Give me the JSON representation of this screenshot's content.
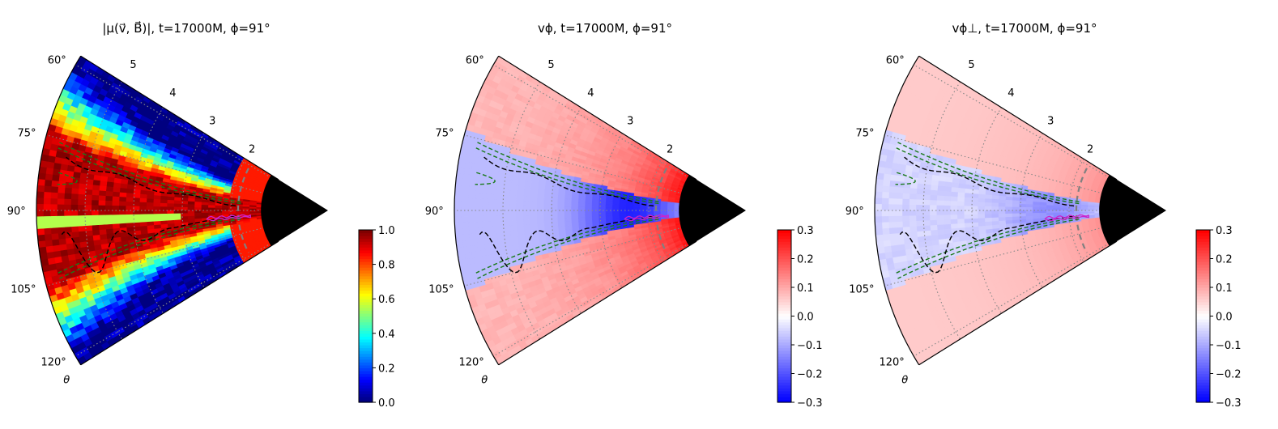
{
  "chart_data": [
    {
      "type": "heatmap",
      "title": "|μ(v⃗, B⃗)|, t=17000M, ϕ=91°",
      "theta_label": "θ",
      "theta_ticks": [
        "60°",
        "75°",
        "90°",
        "105°",
        "120°"
      ],
      "theta_tick_values": [
        60,
        75,
        90,
        105,
        120
      ],
      "r_ticks": [
        "2",
        "3",
        "4",
        "5"
      ],
      "r_tick_values": [
        2,
        3,
        4,
        5
      ],
      "theta_range": [
        58,
        122
      ],
      "r_range": [
        1.2,
        6
      ],
      "grid": true,
      "colormap": "jet",
      "colorbar": {
        "ticks": [
          "0.0",
          "0.2",
          "0.4",
          "0.6",
          "0.8",
          "1.0"
        ],
        "tick_values": [
          0,
          0.2,
          0.4,
          0.6,
          0.8,
          1.0
        ],
        "range": [
          0,
          1
        ]
      }
    },
    {
      "type": "heatmap",
      "title": "vϕ, t=17000M, ϕ=91°",
      "theta_label": "θ",
      "theta_ticks": [
        "60°",
        "75°",
        "90°",
        "105°",
        "120°"
      ],
      "theta_tick_values": [
        60,
        75,
        90,
        105,
        120
      ],
      "r_ticks": [
        "2",
        "3",
        "4",
        "5"
      ],
      "r_tick_values": [
        2,
        3,
        4,
        5
      ],
      "theta_range": [
        58,
        122
      ],
      "r_range": [
        1.2,
        6
      ],
      "grid": true,
      "colormap": "bwr",
      "colorbar": {
        "ticks": [
          "−0.3",
          "−0.2",
          "−0.1",
          "0.0",
          "0.1",
          "0.2",
          "0.3"
        ],
        "tick_values": [
          -0.3,
          -0.2,
          -0.1,
          0,
          0.1,
          0.2,
          0.3
        ],
        "range": [
          -0.3,
          0.3
        ]
      }
    },
    {
      "type": "heatmap",
      "title": "vϕ⊥, t=17000M, ϕ=91°",
      "theta_label": "θ",
      "theta_ticks": [
        "60°",
        "75°",
        "90°",
        "105°",
        "120°"
      ],
      "theta_tick_values": [
        60,
        75,
        90,
        105,
        120
      ],
      "r_ticks": [
        "2",
        "3",
        "4",
        "5"
      ],
      "r_tick_values": [
        2,
        3,
        4,
        5
      ],
      "theta_range": [
        58,
        122
      ],
      "r_range": [
        1.2,
        6
      ],
      "grid": true,
      "colormap": "bwr",
      "colorbar": {
        "ticks": [
          "−0.3",
          "−0.2",
          "−0.1",
          "0.0",
          "0.1",
          "0.2",
          "0.3"
        ],
        "tick_values": [
          -0.3,
          -0.2,
          -0.1,
          0,
          0.1,
          0.2,
          0.3
        ],
        "range": [
          -0.3,
          0.3
        ]
      }
    }
  ],
  "colors": {
    "horizon": "#000000",
    "dashed_black": "#000000",
    "dashed_green": "#1a7a1a",
    "magenta_contour": "#cc22cc",
    "dashed_gray": "#808080",
    "grid": "#888888"
  }
}
